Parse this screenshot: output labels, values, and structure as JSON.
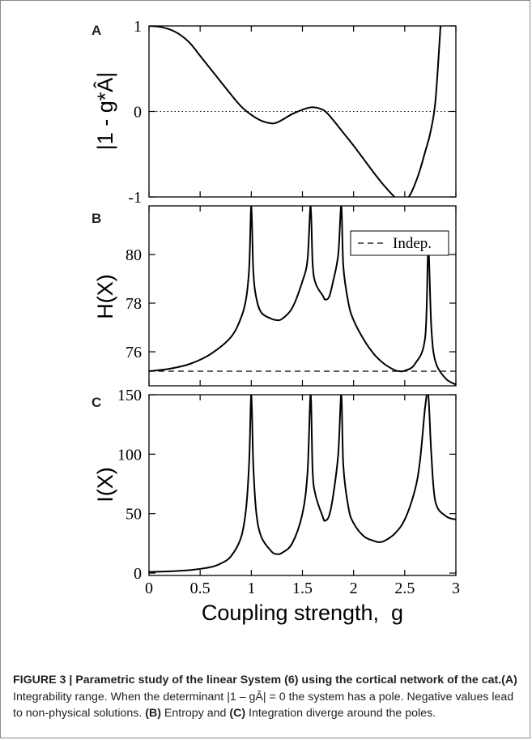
{
  "chart_data": [
    {
      "panel": "A",
      "type": "line",
      "ylabel": "|1 - g*Â|",
      "xlim": [
        0,
        3
      ],
      "ylim": [
        -1,
        1
      ],
      "xticks": [
        0,
        0.5,
        1,
        1.5,
        2,
        2.5,
        3
      ],
      "yticks": [
        1,
        0,
        -1
      ],
      "ytick_labels": [
        "1",
        "0",
        "-1"
      ],
      "reference_line": {
        "y": 0,
        "style": "dotted"
      },
      "series": [
        {
          "x": [
            0,
            0.1,
            0.2,
            0.3,
            0.4,
            0.5,
            0.6,
            0.7,
            0.8,
            0.9,
            1.0,
            1.1,
            1.2,
            1.25,
            1.3,
            1.4,
            1.5,
            1.6,
            1.7,
            1.75,
            1.8,
            1.9,
            2.0,
            2.1,
            2.2,
            2.3,
            2.4,
            2.45,
            2.5,
            2.55,
            2.6,
            2.65,
            2.7,
            2.75,
            2.8,
            2.85
          ],
          "y": [
            1.0,
            0.99,
            0.96,
            0.9,
            0.8,
            0.65,
            0.5,
            0.35,
            0.2,
            0.06,
            -0.04,
            -0.11,
            -0.14,
            -0.13,
            -0.1,
            -0.03,
            0.02,
            0.05,
            0.02,
            -0.03,
            -0.1,
            -0.25,
            -0.4,
            -0.56,
            -0.72,
            -0.87,
            -1.0,
            -1.05,
            -1.05,
            -0.98,
            -0.85,
            -0.68,
            -0.47,
            -0.25,
            0.12,
            1.0
          ]
        }
      ]
    },
    {
      "panel": "B",
      "type": "line",
      "ylabel": "H(X)",
      "xlim": [
        0,
        3
      ],
      "ylim": [
        74.6,
        82.0
      ],
      "xticks": [
        0,
        0.5,
        1,
        1.5,
        2,
        2.5,
        3
      ],
      "yticks": [
        76,
        78,
        80
      ],
      "ytick_labels": [
        "76",
        "78",
        "80"
      ],
      "legend": {
        "entries": [
          "Indep."
        ],
        "placement": "top-right"
      },
      "independent_level": 75.2,
      "series": [
        {
          "x": [
            0,
            0.2,
            0.4,
            0.6,
            0.8,
            0.9,
            0.95,
            0.98,
            1.0,
            1.02,
            1.05,
            1.1,
            1.2,
            1.25,
            1.3,
            1.4,
            1.5,
            1.55,
            1.58,
            1.6,
            1.63,
            1.7,
            1.72,
            1.76,
            1.8,
            1.85,
            1.88,
            1.9,
            1.95,
            2.0,
            2.1,
            2.2,
            2.3,
            2.4,
            2.45,
            2.5,
            2.6,
            2.7,
            2.73,
            2.76,
            2.8,
            2.9,
            3.0
          ],
          "y": [
            75.2,
            75.3,
            75.5,
            75.9,
            76.6,
            77.4,
            78.2,
            79.5,
            82.0,
            79.3,
            78.2,
            77.6,
            77.35,
            77.3,
            77.35,
            77.8,
            78.9,
            79.8,
            82.0,
            79.6,
            78.8,
            78.3,
            78.15,
            78.25,
            78.9,
            80.0,
            82.0,
            79.5,
            78.0,
            77.3,
            76.5,
            75.9,
            75.5,
            75.25,
            75.2,
            75.22,
            75.5,
            76.6,
            80.2,
            77.0,
            75.6,
            74.9,
            74.65
          ]
        }
      ]
    },
    {
      "panel": "C",
      "type": "line",
      "xlabel": "Coupling strength,  g",
      "ylabel": "I(X)",
      "xlim": [
        0,
        3
      ],
      "ylim": [
        -2,
        150
      ],
      "xticks": [
        0,
        0.5,
        1,
        1.5,
        2,
        2.5,
        3
      ],
      "xtick_labels": [
        "0",
        "0.5",
        "1",
        "1.5",
        "2",
        "2.5",
        "3"
      ],
      "yticks": [
        0,
        50,
        100,
        150
      ],
      "ytick_labels": [
        "0",
        "50",
        "100",
        "150"
      ],
      "series": [
        {
          "x": [
            0,
            0.2,
            0.4,
            0.6,
            0.7,
            0.8,
            0.9,
            0.95,
            0.98,
            1.0,
            1.02,
            1.05,
            1.1,
            1.2,
            1.25,
            1.3,
            1.4,
            1.5,
            1.55,
            1.58,
            1.6,
            1.63,
            1.7,
            1.72,
            1.76,
            1.8,
            1.85,
            1.88,
            1.9,
            1.95,
            2.0,
            2.1,
            2.2,
            2.25,
            2.3,
            2.4,
            2.5,
            2.6,
            2.65,
            2.7,
            2.73,
            2.76,
            2.8,
            2.9,
            3.0
          ],
          "y": [
            1,
            1.5,
            2.5,
            5,
            8,
            14,
            30,
            55,
            95,
            150,
            90,
            50,
            30,
            18,
            16,
            17,
            25,
            50,
            85,
            150,
            85,
            65,
            47,
            44,
            48,
            65,
            100,
            150,
            90,
            55,
            42,
            31,
            27,
            26,
            27,
            33,
            45,
            70,
            95,
            140,
            150,
            100,
            60,
            48,
            45
          ]
        }
      ]
    }
  ],
  "panels": {
    "a": {
      "letter": "A"
    },
    "b": {
      "letter": "B"
    },
    "c": {
      "letter": "C"
    }
  },
  "caption": {
    "figure_label": "FIGURE 3 | Parametric study of the linear System (6) using the cortical network of the cat.",
    "ref_a": "(A)",
    "text_a1": " Integrability range. When the determinant |1 – gÂ| = 0 the system has a pole. Negative values lead to non-physical solutions. ",
    "ref_b": "(B)",
    "text_b": " Entropy and ",
    "ref_c": "(C)",
    "text_c": " Integration diverge around the poles."
  }
}
